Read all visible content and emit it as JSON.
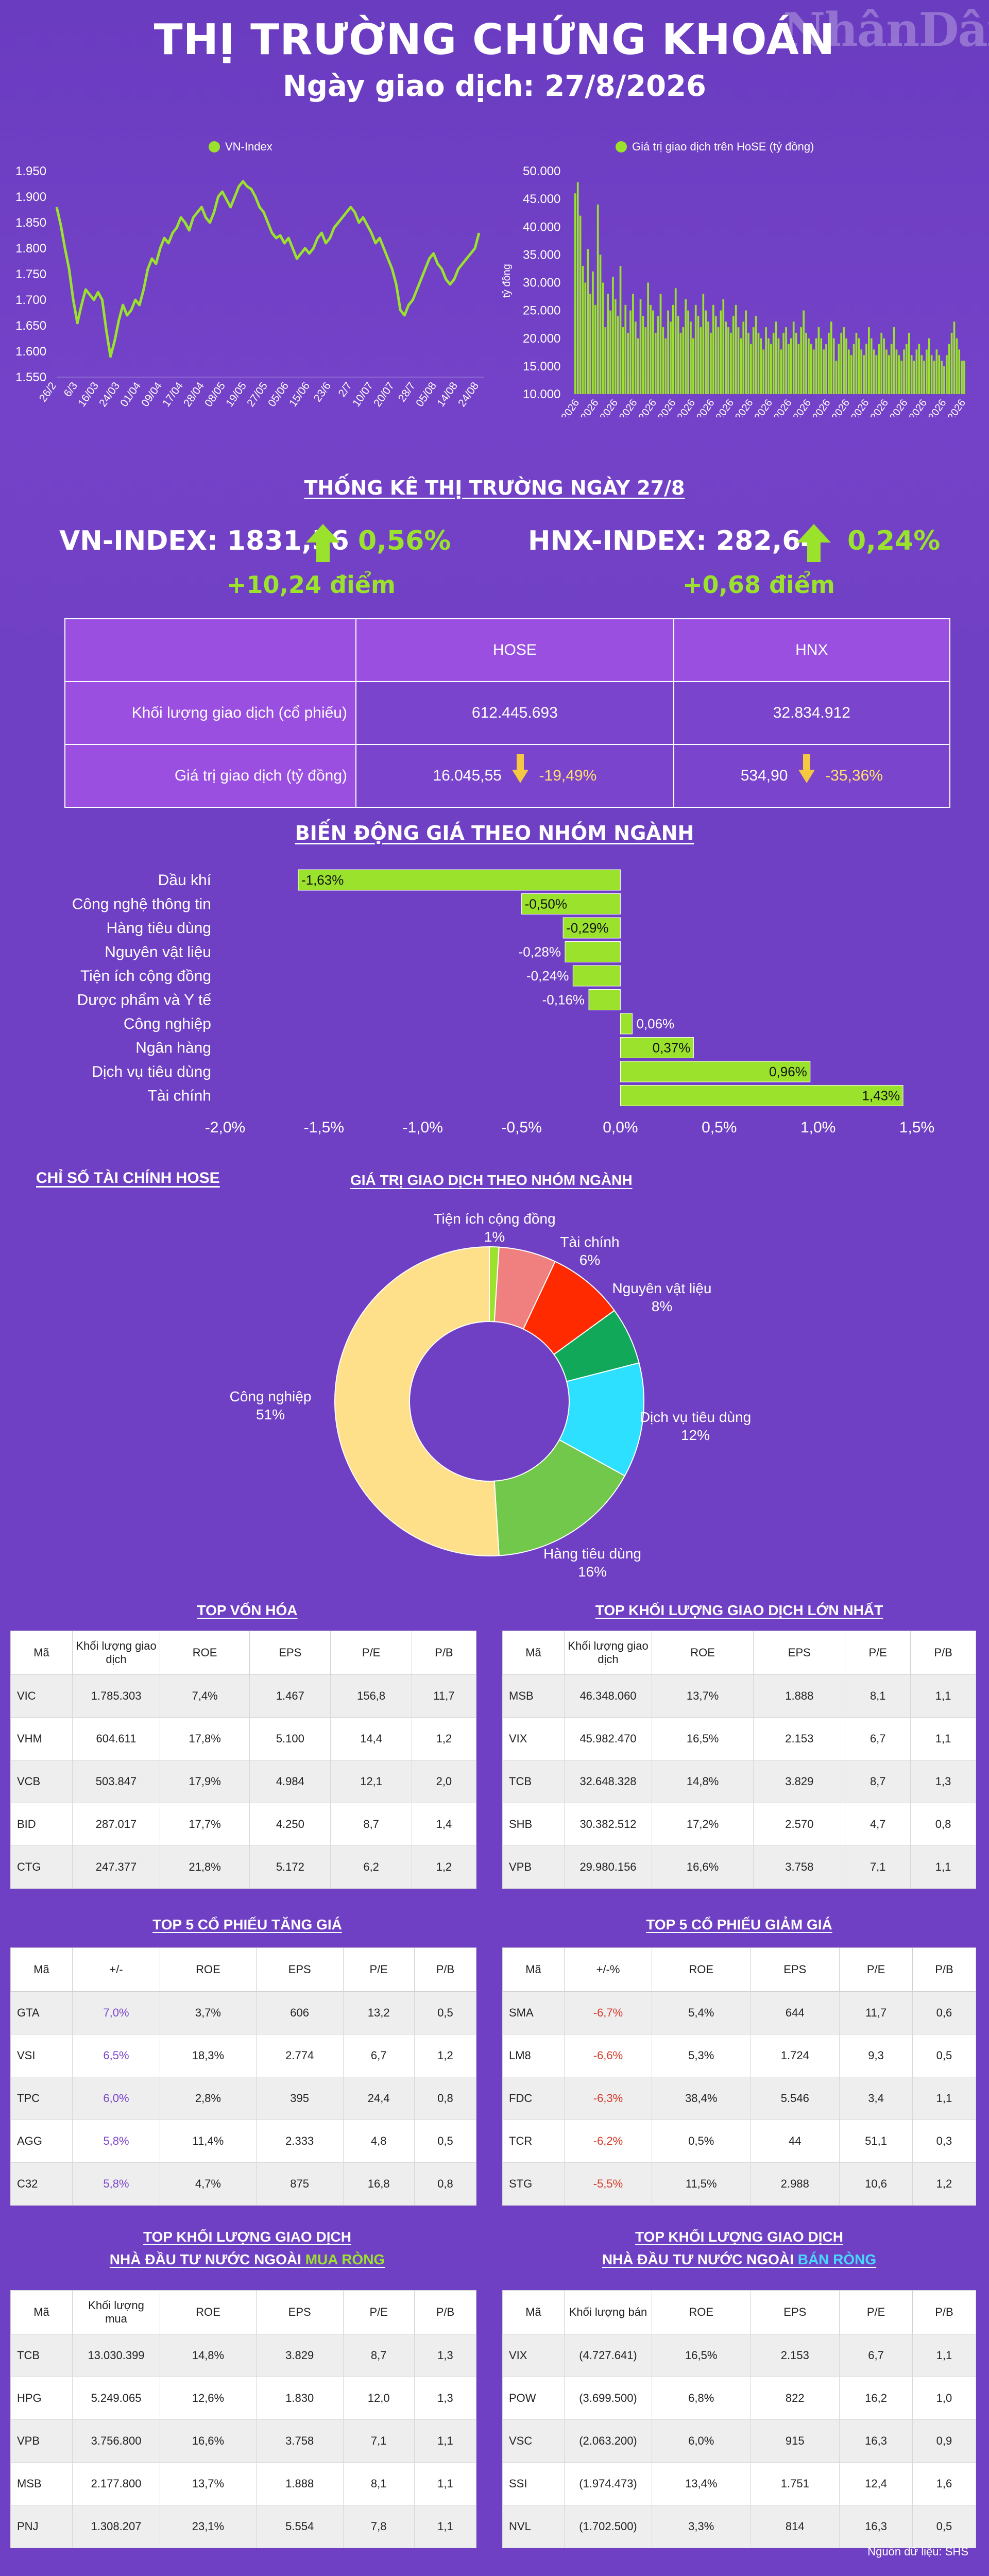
{
  "header": {
    "title": "THỊ TRƯỜNG CHỨNG KHOÁN",
    "date": "Ngày giao dịch: 27/8/2026",
    "logo": "NhânDân"
  },
  "colors": {
    "background": "#7040c4",
    "accent_green": "#9be22c",
    "header_purple": "#9a4fe0",
    "down_yellow": "#f5c842",
    "down_red": "#d43a2a"
  },
  "chart_data": [
    {
      "type": "line",
      "series": [
        {
          "name": "VN-Index"
        }
      ],
      "y_ticks": [
        "1.950",
        "1.900",
        "1.850",
        "1.800",
        "1.750",
        "1.700",
        "1.650",
        "1.600",
        "1.550"
      ],
      "ylim": [
        1550,
        1950
      ],
      "x_tick_labels": [
        "26/2",
        "6/3",
        "16/03",
        "24/03",
        "01/04",
        "09/04",
        "17/04",
        "28/04",
        "08/05",
        "19/05",
        "27/05",
        "05/06",
        "15/06",
        "23/6",
        "2/7",
        "10/07",
        "20/07",
        "28/7",
        "05/08",
        "14/08",
        "24/08"
      ],
      "values": [
        1880,
        1845,
        1800,
        1760,
        1700,
        1655,
        1690,
        1720,
        1710,
        1700,
        1715,
        1700,
        1640,
        1590,
        1620,
        1660,
        1690,
        1670,
        1680,
        1700,
        1690,
        1720,
        1760,
        1780,
        1770,
        1800,
        1820,
        1810,
        1830,
        1840,
        1860,
        1850,
        1835,
        1860,
        1870,
        1880,
        1860,
        1850,
        1870,
        1900,
        1910,
        1895,
        1880,
        1900,
        1920,
        1930,
        1920,
        1915,
        1900,
        1880,
        1870,
        1850,
        1830,
        1820,
        1825,
        1810,
        1820,
        1800,
        1780,
        1790,
        1800,
        1790,
        1800,
        1820,
        1830,
        1810,
        1820,
        1840,
        1850,
        1860,
        1870,
        1880,
        1870,
        1850,
        1860,
        1845,
        1830,
        1810,
        1820,
        1800,
        1780,
        1760,
        1730,
        1680,
        1670,
        1690,
        1700,
        1720,
        1740,
        1760,
        1780,
        1790,
        1770,
        1760,
        1740,
        1730,
        1740,
        1760,
        1770,
        1780,
        1790,
        1800,
        1830
      ]
    },
    {
      "type": "bar",
      "series": [
        {
          "name": "Giá trị giao dịch trên HoSE (tỷ đồng)"
        }
      ],
      "ylabel": "tỷ đồng",
      "y_ticks": [
        "50.000",
        "45.000",
        "40.000",
        "35.000",
        "30.000",
        "25.000",
        "20.000",
        "15.000",
        "10.000"
      ],
      "ylim": [
        10000,
        50000
      ],
      "x_tick_labels": [
        "26/2/2026",
        "6/3/2026",
        "16/3/2026",
        "24/3/2026",
        "1/4/2026",
        "9/4/2026",
        "17/4/2026",
        "28/4/2026",
        "8/5/2026",
        "19/5/2026",
        "27/5/2026",
        "5/6/2026",
        "15/6/2026",
        "23/6/2026",
        "2/7/2026",
        "10/7/2026",
        "20/7/2026",
        "28/7/2026",
        "5/8/2026",
        "13/8/2026",
        "21/8/2026"
      ],
      "values": [
        46000,
        48000,
        42000,
        33000,
        30000,
        36000,
        28000,
        32000,
        26000,
        44000,
        35000,
        30000,
        22000,
        28000,
        25000,
        31000,
        27000,
        24000,
        33000,
        22000,
        26000,
        21000,
        25000,
        28000,
        23000,
        20000,
        27000,
        24000,
        22000,
        30000,
        26000,
        25000,
        21000,
        24000,
        28000,
        22000,
        20000,
        25000,
        23000,
        26000,
        29000,
        24000,
        21000,
        22000,
        27000,
        25000,
        23000,
        20000,
        26000,
        24000,
        22000,
        28000,
        25000,
        23000,
        21000,
        26000,
        24000,
        22000,
        25000,
        27000,
        23000,
        22000,
        21000,
        24000,
        26000,
        22000,
        20000,
        23000,
        25000,
        21000,
        19000,
        22000,
        24000,
        21000,
        20000,
        18000,
        22000,
        20000,
        19000,
        21000,
        23000,
        20000,
        18000,
        21000,
        22000,
        19000,
        20000,
        23000,
        21000,
        19000,
        22000,
        25000,
        21000,
        20000,
        19000,
        18000,
        20000,
        22000,
        20000,
        18000,
        19000,
        21000,
        23000,
        20000,
        16000,
        19000,
        21000,
        22000,
        20000,
        18000,
        17000,
        19000,
        21000,
        20000,
        18000,
        17000,
        19000,
        22000,
        20000,
        18000,
        17000,
        19000,
        21000,
        20000,
        18000,
        17000,
        19000,
        22000,
        18000,
        17000,
        16000,
        18000,
        19000,
        21000,
        17000,
        16000,
        18000,
        19000,
        17000,
        16000,
        18000,
        20000,
        17000,
        16000,
        18000,
        17000,
        16000,
        15000,
        17000,
        19000,
        21000,
        23000,
        20000,
        18000,
        16000,
        16000
      ]
    },
    {
      "type": "bar",
      "title": "BIẾN ĐỘNG GIÁ THEO NHÓM NGÀNH",
      "orientation": "horizontal",
      "categories": [
        "Dầu khí",
        "Công nghệ thông tin",
        "Hàng tiêu dùng",
        "Nguyên vật liệu",
        "Tiện ích cộng đồng",
        "Dược phẩm và Y tế",
        "Công nghiệp",
        "Ngân hàng",
        "Dịch vụ tiêu dùng",
        "Tài chính"
      ],
      "values": [
        -1.63,
        -0.5,
        -0.29,
        -0.28,
        -0.24,
        -0.16,
        0.06,
        0.37,
        0.96,
        1.43
      ],
      "labels": [
        "-1,63%",
        "-0,50%",
        "-0,29%",
        "-0,28%",
        "-0,24%",
        "-0,16%",
        "0,06%",
        "0,37%",
        "0,96%",
        "1,43%"
      ],
      "x_ticks": [
        "-2,0%",
        "-1,5%",
        "-1,0%",
        "-0,5%",
        "0,0%",
        "0,5%",
        "1,0%",
        "1,5%"
      ],
      "xlim": [
        -2.0,
        1.5
      ]
    },
    {
      "type": "pie",
      "title": "GIÁ TRỊ GIAO DỊCH THEO NHÓM NGÀNH",
      "slices": [
        {
          "label": "Tiện ích cộng đồng",
          "pct": "1%",
          "value": 1,
          "color": "#9be22c"
        },
        {
          "label": "Tài chính",
          "pct": "6%",
          "value": 6,
          "color": "#f08080"
        },
        {
          "label": "Nguyên vật liệu",
          "pct": "8%",
          "value": 8,
          "color": "#ff2a00"
        },
        {
          "label": "",
          "pct": "",
          "value": 6,
          "color": "#12a85a"
        },
        {
          "label": "Dịch vụ tiêu dùng",
          "pct": "12%",
          "value": 12,
          "color": "#2ee0ff"
        },
        {
          "label": "Hàng tiêu dùng",
          "pct": "16%",
          "value": 16,
          "color": "#72c84a"
        },
        {
          "label": "Công nghiệp",
          "pct": "51%",
          "value": 51,
          "color": "#ffe08a"
        }
      ]
    }
  ],
  "stats": {
    "title": "THỐNG KÊ THỊ TRƯỜNG NGÀY 27/8",
    "vn": {
      "label": "VN-INDEX: 1831,56",
      "pct": "0,56%",
      "pts": "+10,24 điểm"
    },
    "hnx": {
      "label": "HNX-INDEX: 282,64",
      "pct": "0,24%",
      "pts": "+0,68 điểm"
    },
    "table": {
      "col_hose": "HOSE",
      "col_hnx": "HNX",
      "row1_label": "Khối lượng giao dịch (cổ phiếu)",
      "row1_hose": "612.445.693",
      "row1_hnx": "32.834.912",
      "row2_label": "Giá trị giao dịch (tỷ đồng)",
      "row2_hose": "16.045,55",
      "row2_hose_chg": "-19,49%",
      "row2_hnx": "534,90",
      "row2_hnx_chg": "-35,36%"
    }
  },
  "hose_fin_title": "CHỈ SỐ TÀI CHÍNH HOSE",
  "tables": {
    "top_cap": {
      "title": "TOP VỐN HÓA",
      "headers": [
        "Mã",
        "Khối lượng giao dịch",
        "ROE",
        "EPS",
        "P/E",
        "P/B"
      ],
      "rows": [
        [
          "VIC",
          "1.785.303",
          "7,4%",
          "1.467",
          "156,8",
          "11,7"
        ],
        [
          "VHM",
          "604.611",
          "17,8%",
          "5.100",
          "14,4",
          "1,2"
        ],
        [
          "VCB",
          "503.847",
          "17,9%",
          "4.984",
          "12,1",
          "2,0"
        ],
        [
          "BID",
          "287.017",
          "17,7%",
          "4.250",
          "8,7",
          "1,4"
        ],
        [
          "CTG",
          "247.377",
          "21,8%",
          "5.172",
          "6,2",
          "1,2"
        ]
      ]
    },
    "top_vol": {
      "title": "TOP KHỐI LƯỢNG GIAO DỊCH LỚN NHẤT",
      "headers": [
        "Mã",
        "Khối lượng giao dịch",
        "ROE",
        "EPS",
        "P/E",
        "P/B"
      ],
      "rows": [
        [
          "MSB",
          "46.348.060",
          "13,7%",
          "1.888",
          "8,1",
          "1,1"
        ],
        [
          "VIX",
          "45.982.470",
          "16,5%",
          "2.153",
          "6,7",
          "1,1"
        ],
        [
          "TCB",
          "32.648.328",
          "14,8%",
          "3.829",
          "8,7",
          "1,3"
        ],
        [
          "SHB",
          "30.382.512",
          "17,2%",
          "2.570",
          "4,7",
          "0,8"
        ],
        [
          "VPB",
          "29.980.156",
          "16,6%",
          "3.758",
          "7,1",
          "1,1"
        ]
      ]
    },
    "top_up": {
      "title": "TOP 5 CỔ PHIẾU TĂNG GIÁ",
      "headers": [
        "Mã",
        "+/-",
        "ROE",
        "EPS",
        "P/E",
        "P/B"
      ],
      "rows": [
        [
          "GTA",
          "7,0%",
          "3,7%",
          "606",
          "13,2",
          "0,5"
        ],
        [
          "VSI",
          "6,5%",
          "18,3%",
          "2.774",
          "6,7",
          "1,2"
        ],
        [
          "TPC",
          "6,0%",
          "2,8%",
          "395",
          "24,4",
          "0,8"
        ],
        [
          "AGG",
          "5,8%",
          "11,4%",
          "2.333",
          "4,8",
          "0,5"
        ],
        [
          "C32",
          "5,8%",
          "4,7%",
          "875",
          "16,8",
          "0,8"
        ]
      ]
    },
    "top_down": {
      "title": "TOP 5 CỔ PHIẾU GIẢM GIÁ",
      "headers": [
        "Mã",
        "+/-%",
        "ROE",
        "EPS",
        "P/E",
        "P/B"
      ],
      "rows": [
        [
          "SMA",
          "-6,7%",
          "5,4%",
          "644",
          "11,7",
          "0,6"
        ],
        [
          "LM8",
          "-6,6%",
          "5,3%",
          "1.724",
          "9,3",
          "0,5"
        ],
        [
          "FDC",
          "-6,3%",
          "38,4%",
          "5.546",
          "3,4",
          "1,1"
        ],
        [
          "TCR",
          "-6,2%",
          "0,5%",
          "44",
          "51,1",
          "0,3"
        ],
        [
          "STG",
          "-5,5%",
          "11,5%",
          "2.988",
          "10,6",
          "1,2"
        ]
      ]
    },
    "foreign_buy": {
      "title_line1": "TOP KHỐI LƯỢNG GIAO DỊCH",
      "title_line2_pre": "NHÀ ĐẦU TƯ NƯỚC NGOÀI ",
      "title_line2_hl": "MUA RÒNG",
      "headers": [
        "Mã",
        "Khối lượng mua",
        "ROE",
        "EPS",
        "P/E",
        "P/B"
      ],
      "rows": [
        [
          "TCB",
          "13.030.399",
          "14,8%",
          "3.829",
          "8,7",
          "1,3"
        ],
        [
          "HPG",
          "5.249.065",
          "12,6%",
          "1.830",
          "12,0",
          "1,3"
        ],
        [
          "VPB",
          "3.756.800",
          "16,6%",
          "3.758",
          "7,1",
          "1,1"
        ],
        [
          "MSB",
          "2.177.800",
          "13,7%",
          "1.888",
          "8,1",
          "1,1"
        ],
        [
          "PNJ",
          "1.308.207",
          "23,1%",
          "5.554",
          "7,8",
          "1,1"
        ]
      ]
    },
    "foreign_sell": {
      "title_line1": "TOP KHỐI LƯỢNG GIAO DỊCH",
      "title_line2_pre": "NHÀ ĐẦU TƯ NƯỚC NGOÀI ",
      "title_line2_hl": "BÁN RÒNG",
      "headers": [
        "Mã",
        "Khối lượng bán",
        "ROE",
        "EPS",
        "P/E",
        "P/B"
      ],
      "rows": [
        [
          "VIX",
          "(4.727.641)",
          "16,5%",
          "2.153",
          "6,7",
          "1,1"
        ],
        [
          "POW",
          "(3.699.500)",
          "6,8%",
          "822",
          "16,2",
          "1,0"
        ],
        [
          "VSC",
          "(2.063.200)",
          "6,0%",
          "915",
          "16,3",
          "0,9"
        ],
        [
          "SSI",
          "(1.974.473)",
          "13,4%",
          "1.751",
          "12,4",
          "1,6"
        ],
        [
          "NVL",
          "(1.702.500)",
          "3,3%",
          "814",
          "16,3",
          "0,5"
        ]
      ]
    }
  },
  "source": "Nguồn dữ liệu: SHS"
}
